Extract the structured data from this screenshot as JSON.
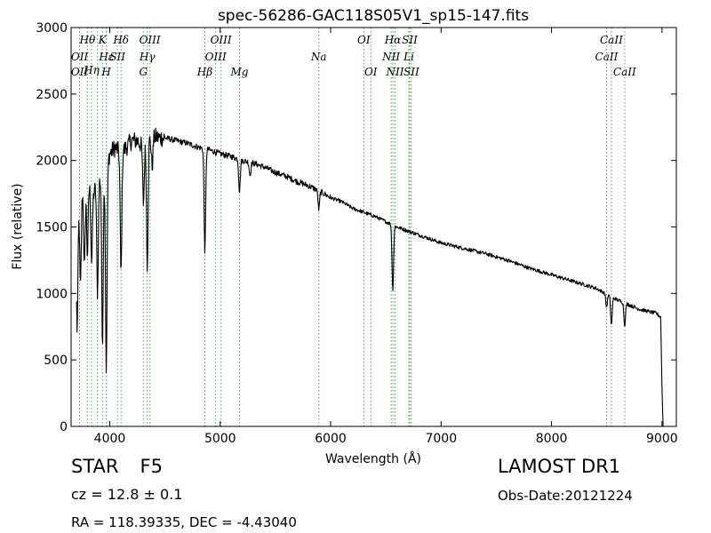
{
  "chart_data": {
    "type": "line",
    "title": "spec-56286-GAC118S05V1_sp15-147.fits",
    "xlabel": "Wavelength (Å)",
    "ylabel": "Flux (relative)",
    "xlim": [
      3650,
      9130
    ],
    "ylim": [
      0,
      3000
    ],
    "xticks": [
      4000,
      5000,
      6000,
      7000,
      8000,
      9000
    ],
    "yticks": [
      0,
      500,
      1000,
      1500,
      2000,
      2500,
      3000
    ],
    "grid": false,
    "line_color": "#000000",
    "marker_color": "#3cb44b",
    "continuum": [
      [
        3700,
        1600
      ],
      [
        3750,
        1800
      ],
      [
        3800,
        1850
      ],
      [
        3850,
        1750
      ],
      [
        3900,
        1850
      ],
      [
        3950,
        1900
      ],
      [
        4000,
        2050
      ],
      [
        4050,
        2100
      ],
      [
        4100,
        2050
      ],
      [
        4150,
        2100
      ],
      [
        4200,
        2150
      ],
      [
        4250,
        2150
      ],
      [
        4300,
        2100
      ],
      [
        4350,
        2150
      ],
      [
        4400,
        2180
      ],
      [
        4450,
        2170
      ],
      [
        4500,
        2170
      ],
      [
        4600,
        2150
      ],
      [
        4700,
        2130
      ],
      [
        4800,
        2100
      ],
      [
        4900,
        2080
      ],
      [
        5000,
        2050
      ],
      [
        5100,
        2030
      ],
      [
        5200,
        2000
      ],
      [
        5300,
        1980
      ],
      [
        5400,
        1950
      ],
      [
        5500,
        1910
      ],
      [
        5600,
        1880
      ],
      [
        5700,
        1840
      ],
      [
        5800,
        1810
      ],
      [
        5900,
        1770
      ],
      [
        6000,
        1720
      ],
      [
        6100,
        1690
      ],
      [
        6200,
        1640
      ],
      [
        6300,
        1610
      ],
      [
        6400,
        1580
      ],
      [
        6500,
        1540
      ],
      [
        6600,
        1500
      ],
      [
        6700,
        1470
      ],
      [
        6800,
        1440
      ],
      [
        6900,
        1410
      ],
      [
        7000,
        1380
      ],
      [
        7200,
        1340
      ],
      [
        7400,
        1300
      ],
      [
        7600,
        1250
      ],
      [
        7800,
        1190
      ],
      [
        8000,
        1140
      ],
      [
        8200,
        1090
      ],
      [
        8400,
        1040
      ],
      [
        8600,
        950
      ],
      [
        8800,
        880
      ],
      [
        8950,
        850
      ],
      [
        8990,
        820
      ]
    ],
    "absorption_features": [
      {
        "wave": 3705,
        "depth": 0.55
      },
      {
        "wave": 3735,
        "depth": 0.4
      },
      {
        "wave": 3770,
        "depth": 0.35
      },
      {
        "wave": 3798,
        "depth": 0.3
      },
      {
        "wave": 3836,
        "depth": 0.3
      },
      {
        "wave": 3889,
        "depth": 0.45
      },
      {
        "wave": 3934,
        "depth": 0.66
      },
      {
        "wave": 3969,
        "depth": 0.78
      },
      {
        "wave": 4102,
        "depth": 0.44
      },
      {
        "wave": 4305,
        "depth": 0.2
      },
      {
        "wave": 4340,
        "depth": 0.43
      },
      {
        "wave": 4384,
        "depth": 0.1
      },
      {
        "wave": 4861,
        "depth": 0.37
      },
      {
        "wave": 5175,
        "depth": 0.12
      },
      {
        "wave": 5270,
        "depth": 0.05
      },
      {
        "wave": 5893,
        "depth": 0.08
      },
      {
        "wave": 6563,
        "depth": 0.32
      },
      {
        "wave": 8498,
        "depth": 0.1
      },
      {
        "wave": 8542,
        "depth": 0.22
      },
      {
        "wave": 8662,
        "depth": 0.18
      }
    ],
    "line_markers": [
      {
        "label": "Hθ",
        "wave": 3798,
        "tier": 0
      },
      {
        "label": "K",
        "wave": 3934,
        "tier": 0
      },
      {
        "label": "Hδ",
        "wave": 4102,
        "tier": 0
      },
      {
        "label": "OIII",
        "wave": 4363,
        "tier": 0
      },
      {
        "label": "OIII",
        "wave": 5007,
        "tier": 0
      },
      {
        "label": "OI",
        "wave": 6300,
        "tier": 0
      },
      {
        "label": "Hα",
        "wave": 6563,
        "tier": 0
      },
      {
        "label": "SII",
        "wave": 6716,
        "tier": 0
      },
      {
        "label": "CaII",
        "wave": 8542,
        "tier": 0
      },
      {
        "label": "OII",
        "wave": 3727,
        "tier": 1
      },
      {
        "label": "Hε",
        "wave": 3970,
        "tier": 1
      },
      {
        "label": "SII",
        "wave": 4070,
        "tier": 1
      },
      {
        "label": "Hγ",
        "wave": 4340,
        "tier": 1
      },
      {
        "label": "OIII",
        "wave": 4959,
        "tier": 1
      },
      {
        "label": "Na",
        "wave": 5893,
        "tier": 1
      },
      {
        "label": "NII",
        "wave": 6548,
        "tier": 1
      },
      {
        "label": "Li",
        "wave": 6708,
        "tier": 1
      },
      {
        "label": "CaII",
        "wave": 8498,
        "tier": 1
      },
      {
        "label": "Hη",
        "wave": 3835,
        "tier": 2
      },
      {
        "label": "OII",
        "wave": 3727,
        "tier": 3
      },
      {
        "label": "H",
        "wave": 3969,
        "tier": 3
      },
      {
        "label": "G",
        "wave": 4304,
        "tier": 3
      },
      {
        "label": "Hβ",
        "wave": 4861,
        "tier": 3
      },
      {
        "label": "Mg",
        "wave": 5175,
        "tier": 3
      },
      {
        "label": "OI",
        "wave": 6364,
        "tier": 3
      },
      {
        "label": "NII",
        "wave": 6583,
        "tier": 3
      },
      {
        "label": "SII",
        "wave": 6731,
        "tier": 3
      },
      {
        "label": "CaII",
        "wave": 8662,
        "tier": 3
      }
    ],
    "marker_lines": [
      3727,
      3798,
      3835,
      3889,
      3934,
      3969,
      3970,
      4070,
      4102,
      4304,
      4340,
      4363,
      4861,
      4959,
      5007,
      5175,
      5893,
      6300,
      6364,
      6548,
      6563,
      6583,
      6708,
      6716,
      6731,
      8498,
      8542,
      8662
    ]
  },
  "info": {
    "object_class": "STAR",
    "subclass": "F5",
    "survey": "LAMOST DR1",
    "redshift": "cz = 12.8 ± 0.1",
    "obs_date": "Obs-Date:20121224",
    "coordinates": "RA = 118.39335, DEC = -4.43040"
  }
}
